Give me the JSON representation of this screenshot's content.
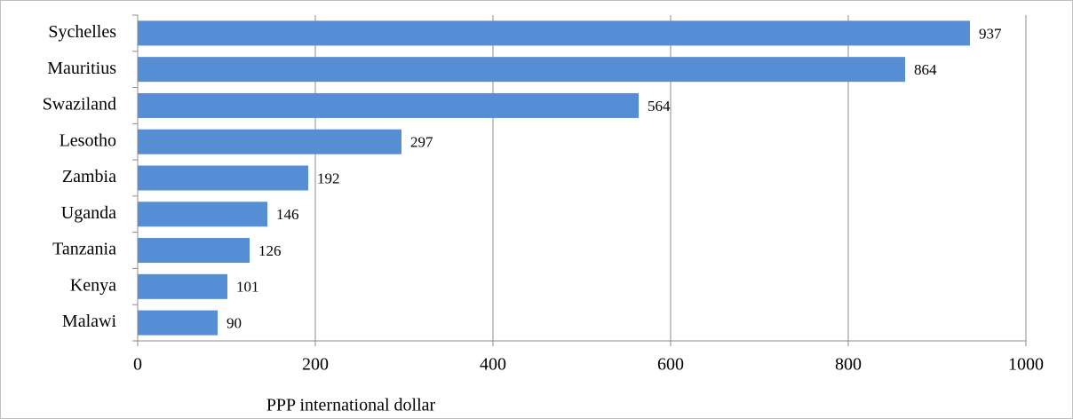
{
  "chart_data": {
    "type": "bar",
    "orientation": "horizontal",
    "categories": [
      "Sychelles",
      "Mauritius",
      "Swaziland",
      "Lesotho",
      "Zambia",
      "Uganda",
      "Tanzania",
      "Kenya",
      "Malawi"
    ],
    "values": [
      937,
      864,
      564,
      297,
      192,
      146,
      126,
      101,
      90
    ],
    "color": "#558ed5",
    "x_label": "PPP international dollar",
    "xlim": [
      0,
      1000
    ],
    "xticks": [
      0,
      200,
      400,
      600,
      800,
      1000
    ],
    "grid": true
  }
}
